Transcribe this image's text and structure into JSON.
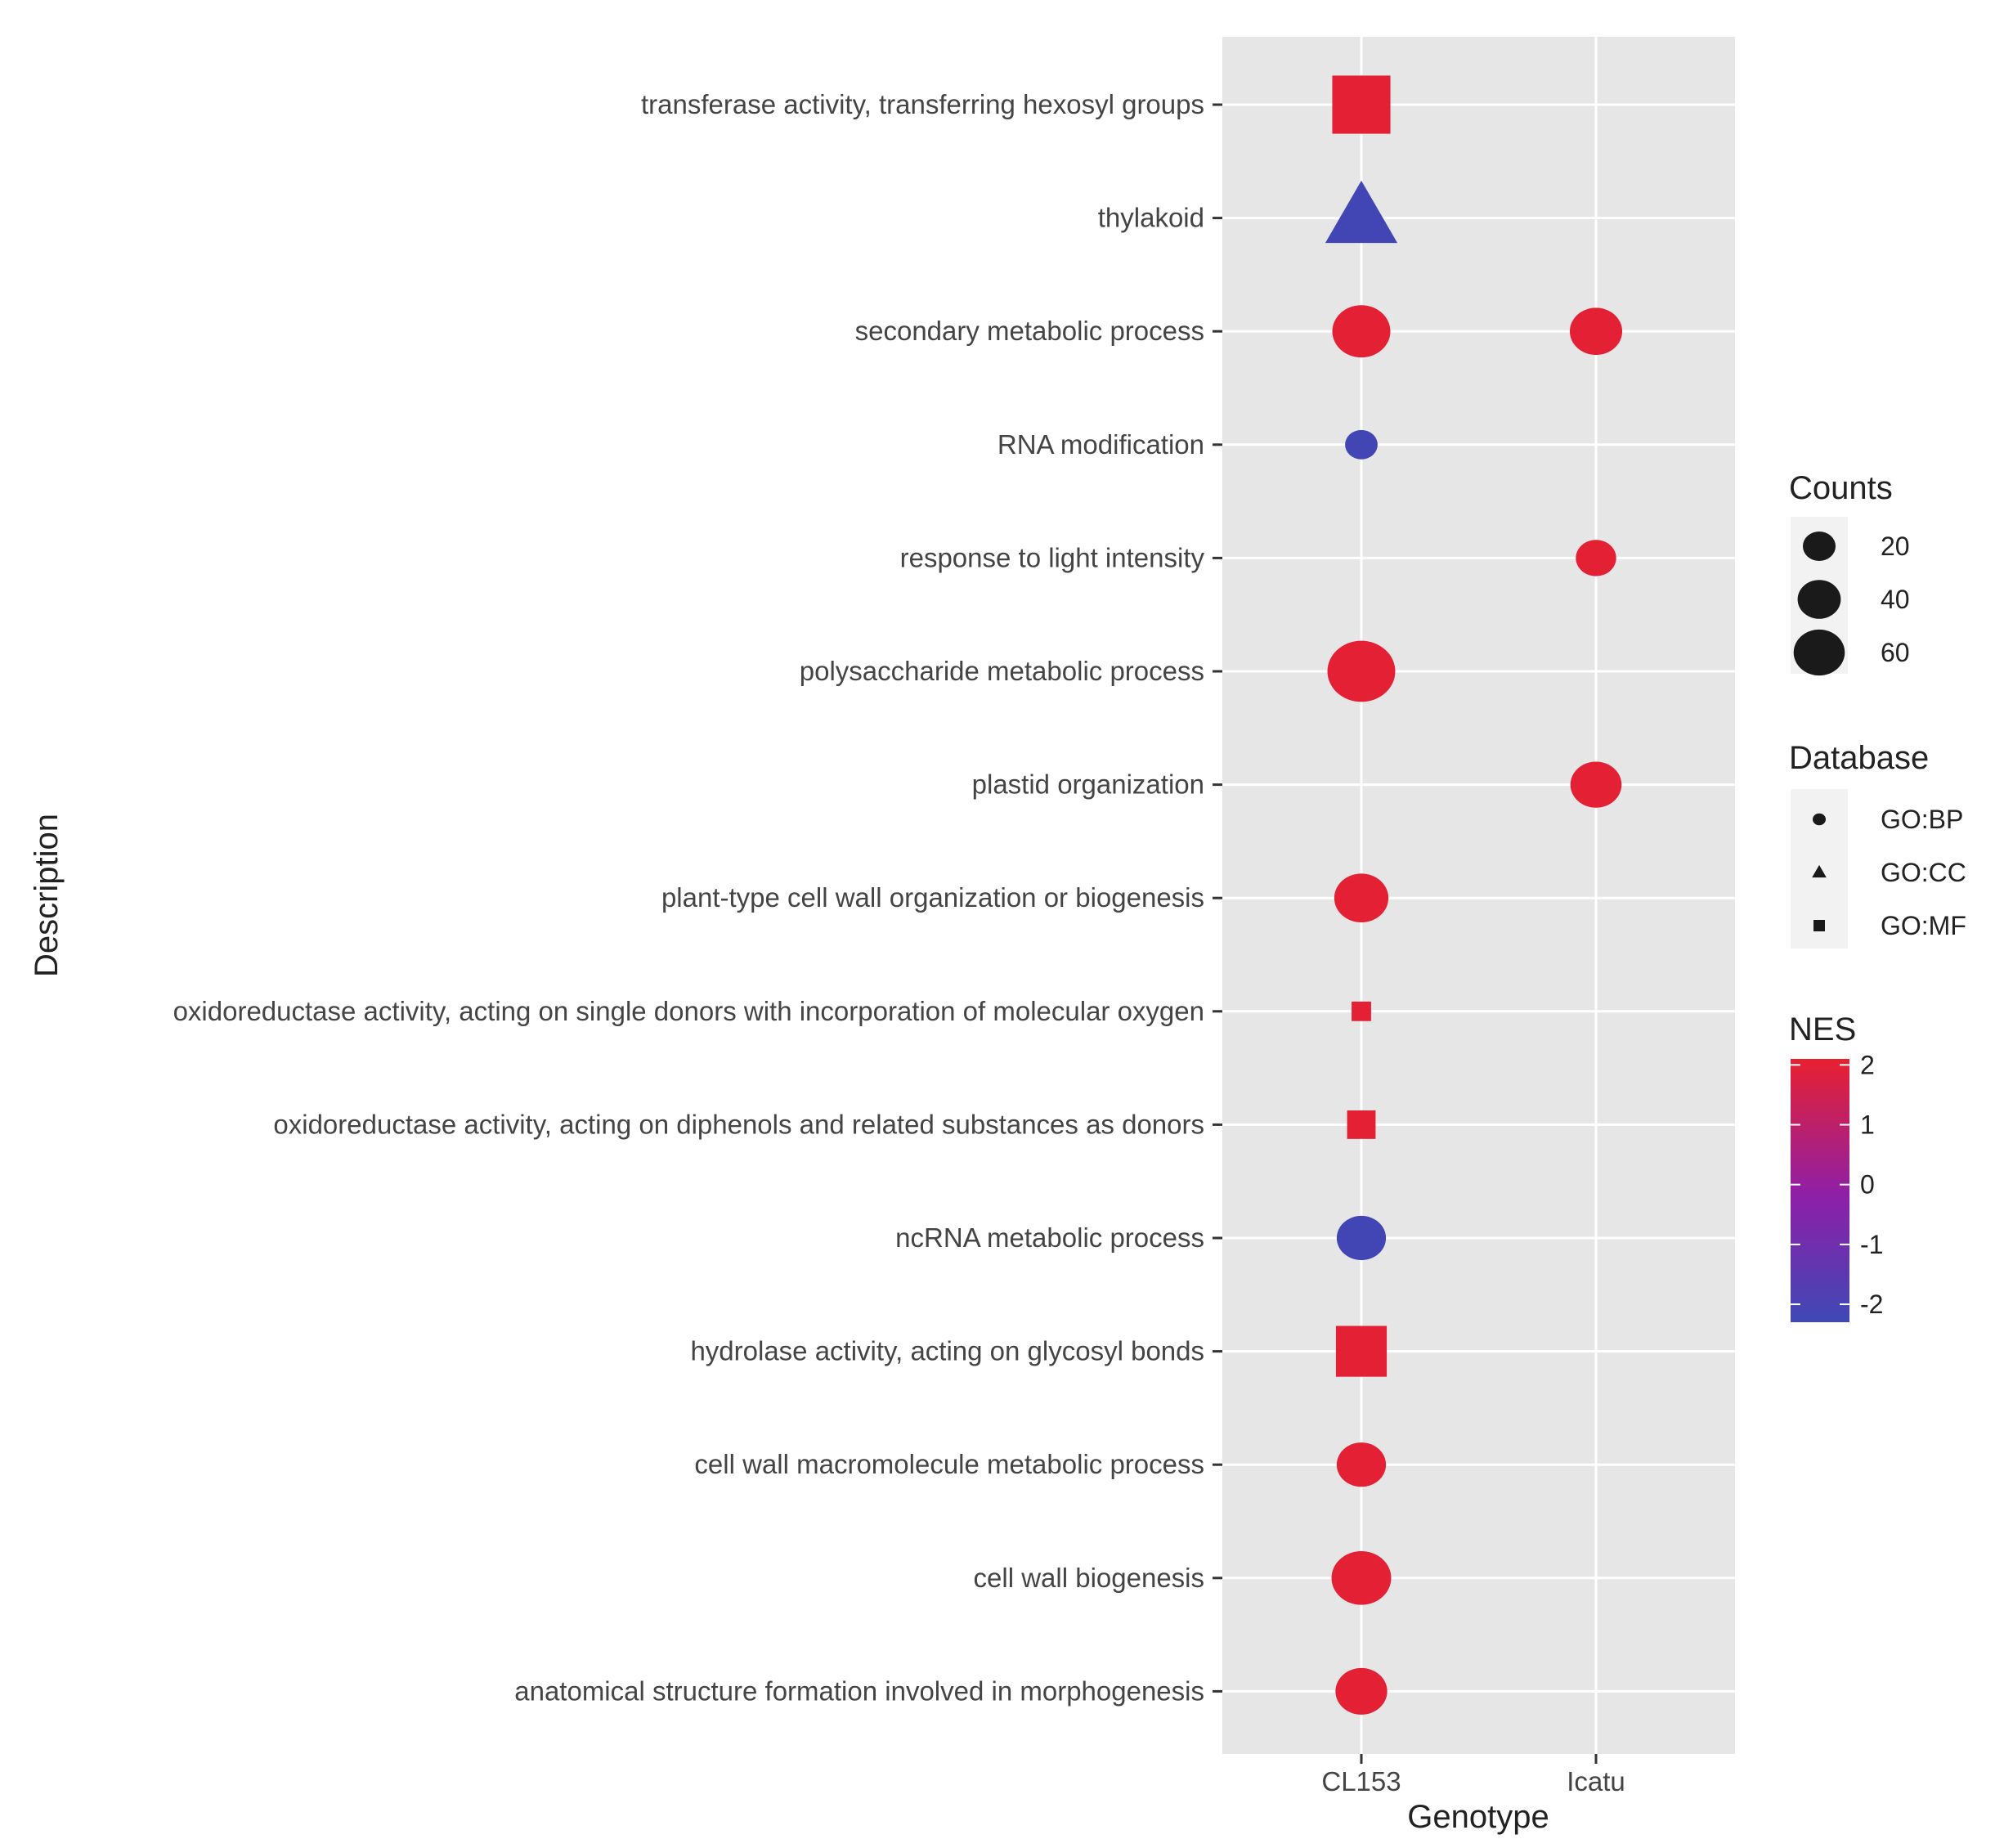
{
  "chart_data": {
    "type": "scatter",
    "xlabel": "Genotype",
    "ylabel": "Description",
    "x_categories": [
      "CL153",
      "Icatu"
    ],
    "y_categories": [
      "transferase activity, transferring hexosyl groups",
      "thylakoid",
      "secondary metabolic process",
      "RNA modification",
      "response to light intensity",
      "polysaccharide metabolic process",
      "plastid organization",
      "plant-type cell wall organization or biogenesis",
      "oxidoreductase activity, acting on single donors with incorporation of molecular oxygen",
      "oxidoreductase activity, acting on diphenols and related substances as donors",
      "ncRNA metabolic process",
      "hydrolase activity, acting on glycosyl bonds",
      "cell wall macromolecule metabolic process",
      "cell wall biogenesis",
      "anatomical structure formation involved in morphogenesis"
    ],
    "points": [
      {
        "x": "CL153",
        "y": "transferase activity, transferring hexosyl groups",
        "counts": 62,
        "database": "GO:MF",
        "nes": 2.0
      },
      {
        "x": "CL153",
        "y": "thylakoid",
        "counts": 60,
        "database": "GO:CC",
        "nes": -2.2
      },
      {
        "x": "CL153",
        "y": "secondary metabolic process",
        "counts": 45,
        "database": "GO:BP",
        "nes": 2.0
      },
      {
        "x": "Icatu",
        "y": "secondary metabolic process",
        "counts": 35,
        "database": "GO:BP",
        "nes": 2.0
      },
      {
        "x": "CL153",
        "y": "RNA modification",
        "counts": 10,
        "database": "GO:BP",
        "nes": -2.2
      },
      {
        "x": "Icatu",
        "y": "response to light intensity",
        "counts": 18,
        "database": "GO:BP",
        "nes": 2.0
      },
      {
        "x": "CL153",
        "y": "polysaccharide metabolic process",
        "counts": 65,
        "database": "GO:BP",
        "nes": 2.0
      },
      {
        "x": "Icatu",
        "y": "plastid organization",
        "counts": 33,
        "database": "GO:BP",
        "nes": 2.0
      },
      {
        "x": "CL153",
        "y": "plant-type cell wall organization or biogenesis",
        "counts": 38,
        "database": "GO:BP",
        "nes": 2.0
      },
      {
        "x": "CL153",
        "y": "oxidoreductase activity, acting on single donors with incorporation of molecular oxygen",
        "counts": 3,
        "database": "GO:MF",
        "nes": 2.0
      },
      {
        "x": "CL153",
        "y": "oxidoreductase activity, acting on diphenols and related substances as donors",
        "counts": 10,
        "database": "GO:MF",
        "nes": 2.0
      },
      {
        "x": "CL153",
        "y": "ncRNA metabolic process",
        "counts": 30,
        "database": "GO:BP",
        "nes": -2.2
      },
      {
        "x": "CL153",
        "y": "hydrolase activity, acting on glycosyl bonds",
        "counts": 45,
        "database": "GO:MF",
        "nes": 2.0
      },
      {
        "x": "CL153",
        "y": "cell wall macromolecule metabolic process",
        "counts": 30,
        "database": "GO:BP",
        "nes": 2.0
      },
      {
        "x": "CL153",
        "y": "cell wall biogenesis",
        "counts": 48,
        "database": "GO:BP",
        "nes": 2.0
      },
      {
        "x": "CL153",
        "y": "anatomical structure formation involved in morphogenesis",
        "counts": 34,
        "database": "GO:BP",
        "nes": 2.0
      }
    ],
    "legend_counts": {
      "title": "Counts",
      "values": [
        20,
        40,
        60
      ],
      "labels": [
        "20",
        "40",
        "60"
      ]
    },
    "legend_database": {
      "title": "Database",
      "entries": [
        {
          "label": "GO:BP",
          "shape": "circle"
        },
        {
          "label": "GO:CC",
          "shape": "triangle"
        },
        {
          "label": "GO:MF",
          "shape": "square"
        }
      ]
    },
    "legend_nes": {
      "title": "NES",
      "range": [
        -2.3,
        2.1
      ],
      "ticks": [
        2,
        1,
        0,
        -1,
        -2
      ],
      "tick_labels": [
        "2",
        "1",
        "0",
        "-1",
        "-2"
      ],
      "low_color": "#3f48b5",
      "mid_color": "#8e1fa8",
      "high_color": "#e8202f"
    },
    "legend_placement": "right",
    "grid": true,
    "panel_color": "#e6e6e6"
  }
}
